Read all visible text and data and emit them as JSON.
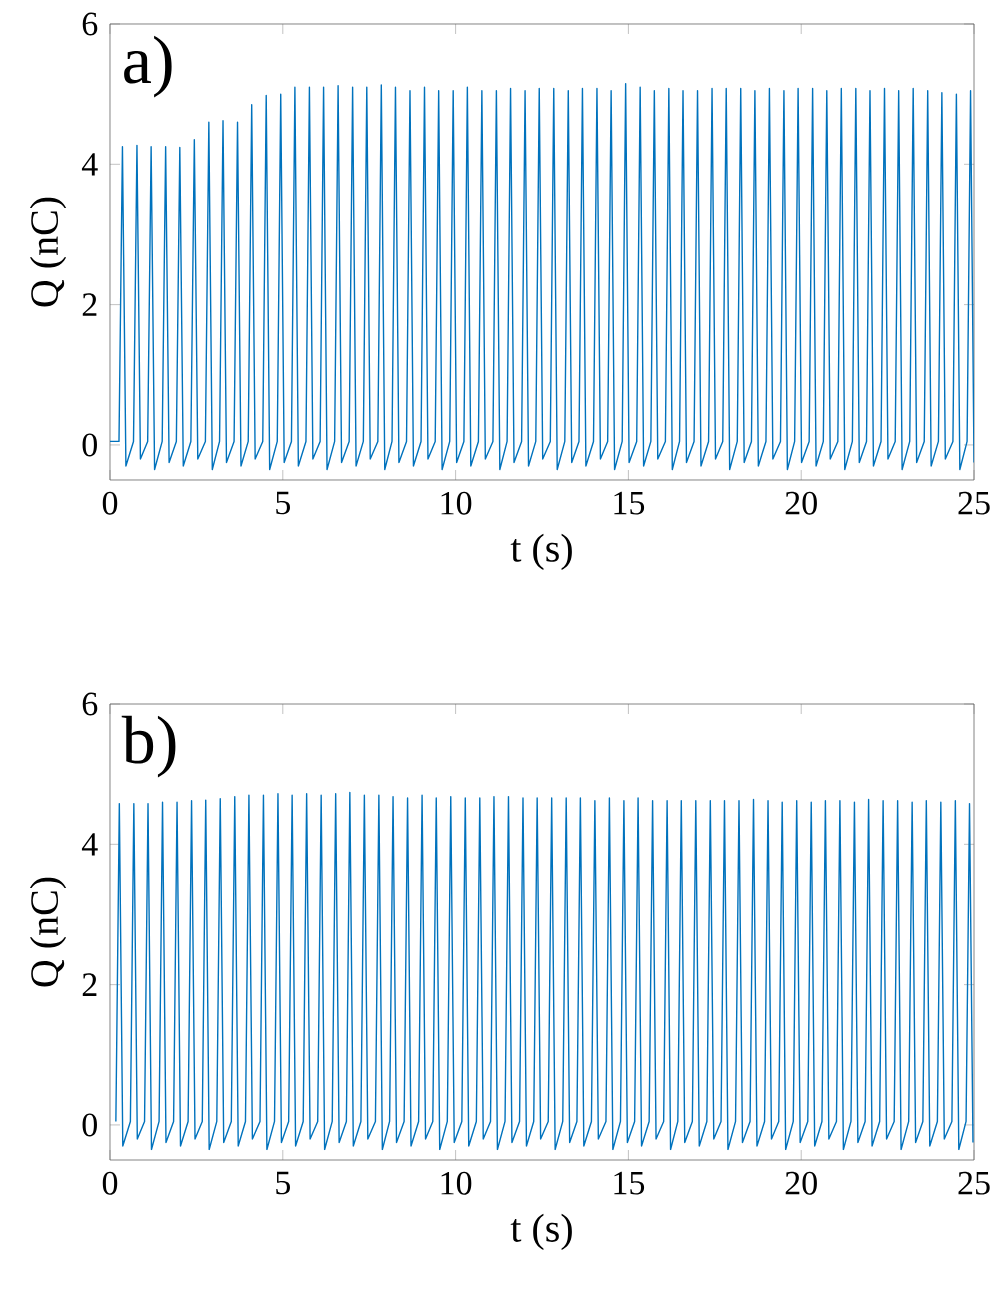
{
  "chart_data": [
    {
      "type": "line",
      "annotations": [
        "a)"
      ],
      "xlabel": "t (s)",
      "ylabel": "Q (nC)",
      "xlim": [
        0,
        25
      ],
      "ylim": [
        -0.5,
        6
      ],
      "xticks": [
        0,
        5,
        10,
        15,
        20,
        25
      ],
      "yticks": [
        0,
        2,
        4,
        6
      ],
      "series": [
        {
          "color": "#0072bd",
          "x": [
            0,
            0.26,
            0.36,
            0.46,
            0.68,
            0.78,
            0.88,
            1.09,
            1.19,
            1.29,
            1.51,
            1.61,
            1.71,
            1.92,
            2.02,
            2.12,
            2.34,
            2.44,
            2.54,
            2.76,
            2.86,
            2.96,
            3.17,
            3.27,
            3.37,
            3.59,
            3.69,
            3.79,
            4.0,
            4.1,
            4.2,
            4.42,
            4.52,
            4.62,
            4.84,
            4.94,
            5.04,
            5.25,
            5.35,
            5.45,
            5.67,
            5.77,
            5.87,
            6.08,
            6.18,
            6.28,
            6.5,
            6.6,
            6.7,
            6.92,
            7.02,
            7.12,
            7.33,
            7.43,
            7.53,
            7.75,
            7.85,
            7.95,
            8.16,
            8.26,
            8.36,
            8.58,
            8.68,
            8.78,
            9.0,
            9.1,
            9.2,
            9.41,
            9.51,
            9.61,
            9.83,
            9.93,
            10.03,
            10.24,
            10.34,
            10.44,
            10.66,
            10.76,
            10.86,
            11.08,
            11.18,
            11.28,
            11.49,
            11.59,
            11.69,
            11.91,
            12.01,
            12.11,
            12.32,
            12.42,
            12.52,
            12.74,
            12.84,
            12.94,
            13.16,
            13.26,
            13.36,
            13.57,
            13.67,
            13.77,
            13.99,
            14.09,
            14.19,
            14.4,
            14.5,
            14.6,
            14.82,
            14.92,
            15.02,
            15.24,
            15.34,
            15.44,
            15.65,
            15.75,
            15.85,
            16.07,
            16.17,
            16.27,
            16.48,
            16.58,
            16.68,
            16.9,
            17.0,
            17.1,
            17.32,
            17.42,
            17.52,
            17.73,
            17.83,
            17.93,
            18.15,
            18.25,
            18.35,
            18.56,
            18.66,
            18.76,
            18.98,
            19.08,
            19.18,
            19.4,
            19.5,
            19.6,
            19.81,
            19.91,
            20.01,
            20.23,
            20.33,
            20.43,
            20.64,
            20.74,
            20.84,
            21.06,
            21.16,
            21.26,
            21.48,
            21.58,
            21.68,
            21.89,
            21.99,
            22.09,
            22.31,
            22.41,
            22.51,
            22.72,
            22.82,
            22.92,
            23.14,
            23.24,
            23.34,
            23.56,
            23.66,
            23.76,
            23.97,
            24.07,
            24.17,
            24.39,
            24.49,
            24.59,
            24.8,
            24.9,
            25.0
          ],
          "values": [
            0.05,
            0.05,
            4.25,
            -0.3,
            0.05,
            4.27,
            -0.2,
            0.05,
            4.25,
            -0.35,
            0.05,
            4.25,
            -0.25,
            0.05,
            4.24,
            -0.3,
            0.05,
            4.35,
            -0.2,
            0.05,
            4.6,
            -0.35,
            0.05,
            4.62,
            -0.25,
            0.05,
            4.6,
            -0.3,
            0.05,
            4.85,
            -0.2,
            0.05,
            4.98,
            -0.35,
            0.05,
            5.0,
            -0.25,
            0.05,
            5.1,
            -0.3,
            0.05,
            5.1,
            -0.2,
            0.05,
            5.1,
            -0.35,
            0.05,
            5.12,
            -0.25,
            0.05,
            5.1,
            -0.3,
            0.05,
            5.1,
            -0.2,
            0.05,
            5.13,
            -0.35,
            0.05,
            5.1,
            -0.25,
            0.05,
            5.05,
            -0.3,
            0.05,
            5.1,
            -0.2,
            0.05,
            5.05,
            -0.35,
            0.05,
            5.05,
            -0.25,
            0.05,
            5.1,
            -0.3,
            0.05,
            5.05,
            -0.2,
            0.05,
            5.05,
            -0.35,
            0.05,
            5.08,
            -0.25,
            0.05,
            5.05,
            -0.3,
            0.05,
            5.08,
            -0.2,
            0.05,
            5.08,
            -0.35,
            0.05,
            5.05,
            -0.25,
            0.05,
            5.08,
            -0.3,
            0.05,
            5.08,
            -0.2,
            0.05,
            5.05,
            -0.35,
            0.05,
            5.15,
            -0.25,
            0.05,
            5.1,
            -0.3,
            0.05,
            5.05,
            -0.2,
            0.05,
            5.08,
            -0.35,
            0.05,
            5.05,
            -0.25,
            0.05,
            5.05,
            -0.3,
            0.05,
            5.08,
            -0.2,
            0.05,
            5.08,
            -0.35,
            0.05,
            5.08,
            -0.25,
            0.05,
            5.05,
            -0.3,
            0.05,
            5.08,
            -0.2,
            0.05,
            5.05,
            -0.35,
            0.05,
            5.08,
            -0.25,
            0.05,
            5.08,
            -0.3,
            0.05,
            5.05,
            -0.2,
            0.05,
            5.08,
            -0.35,
            0.05,
            5.08,
            -0.25,
            0.05,
            5.05,
            -0.3,
            0.05,
            5.08,
            -0.2,
            0.05,
            5.05,
            -0.35,
            0.05,
            5.08,
            -0.25,
            0.05,
            5.05,
            -0.3,
            0.05,
            5.02,
            -0.2,
            0.05,
            5.0,
            -0.35,
            0.05,
            5.05,
            -0.25
          ]
        }
      ]
    },
    {
      "type": "line",
      "annotations": [
        "b)"
      ],
      "xlabel": "t (s)",
      "ylabel": "Q (nC)",
      "xlim": [
        0,
        25
      ],
      "ylim": [
        -0.5,
        6
      ],
      "xticks": [
        0,
        5,
        10,
        15,
        20,
        25
      ],
      "yticks": [
        0,
        2,
        4,
        6
      ],
      "series": [
        {
          "color": "#0072bd",
          "x": [
            0.17,
            0.27,
            0.37,
            0.59,
            0.69,
            0.79,
            1.0,
            1.1,
            1.2,
            1.42,
            1.52,
            1.62,
            1.84,
            1.94,
            2.04,
            2.26,
            2.36,
            2.46,
            2.67,
            2.77,
            2.87,
            3.09,
            3.19,
            3.29,
            3.51,
            3.61,
            3.71,
            3.92,
            4.02,
            4.12,
            4.34,
            4.44,
            4.54,
            4.76,
            4.86,
            4.96,
            5.17,
            5.27,
            5.37,
            5.59,
            5.69,
            5.79,
            6.01,
            6.11,
            6.21,
            6.43,
            6.53,
            6.63,
            6.84,
            6.94,
            7.04,
            7.26,
            7.36,
            7.46,
            7.68,
            7.78,
            7.88,
            8.09,
            8.19,
            8.29,
            8.51,
            8.61,
            8.71,
            8.93,
            9.03,
            9.13,
            9.34,
            9.44,
            9.54,
            9.76,
            9.86,
            9.96,
            10.18,
            10.28,
            10.38,
            10.6,
            10.7,
            10.8,
            11.01,
            11.11,
            11.21,
            11.43,
            11.53,
            11.63,
            11.85,
            11.95,
            12.05,
            12.26,
            12.36,
            12.46,
            12.68,
            12.78,
            12.88,
            13.1,
            13.2,
            13.3,
            13.51,
            13.61,
            13.71,
            13.93,
            14.03,
            14.13,
            14.35,
            14.45,
            14.55,
            14.77,
            14.87,
            14.97,
            15.18,
            15.28,
            15.38,
            15.6,
            15.7,
            15.8,
            16.02,
            16.12,
            16.22,
            16.43,
            16.53,
            16.63,
            16.85,
            16.95,
            17.05,
            17.27,
            17.37,
            17.47,
            17.68,
            17.78,
            17.88,
            18.1,
            18.2,
            18.3,
            18.52,
            18.62,
            18.72,
            18.94,
            19.04,
            19.14,
            19.35,
            19.45,
            19.55,
            19.77,
            19.87,
            19.97,
            20.19,
            20.29,
            20.39,
            20.6,
            20.7,
            20.8,
            21.02,
            21.12,
            21.22,
            21.44,
            21.54,
            21.64,
            21.85,
            21.95,
            22.05,
            22.27,
            22.37,
            22.47,
            22.69,
            22.79,
            22.89,
            23.11,
            23.21,
            23.31,
            23.52,
            23.62,
            23.72,
            23.94,
            24.04,
            24.14,
            24.36,
            24.46,
            24.56,
            24.77,
            24.87,
            24.97
          ],
          "values": [
            0.05,
            4.58,
            -0.3,
            0.05,
            4.58,
            -0.2,
            0.05,
            4.58,
            -0.35,
            0.05,
            4.6,
            -0.25,
            0.05,
            4.6,
            -0.3,
            0.05,
            4.62,
            -0.2,
            0.05,
            4.63,
            -0.35,
            0.05,
            4.65,
            -0.25,
            0.05,
            4.68,
            -0.3,
            0.05,
            4.7,
            -0.2,
            0.05,
            4.7,
            -0.35,
            0.05,
            4.72,
            -0.25,
            0.05,
            4.7,
            -0.3,
            0.05,
            4.72,
            -0.2,
            0.05,
            4.7,
            -0.35,
            0.05,
            4.72,
            -0.25,
            0.05,
            4.74,
            -0.3,
            0.05,
            4.7,
            -0.2,
            0.05,
            4.7,
            -0.35,
            0.05,
            4.68,
            -0.25,
            0.05,
            4.66,
            -0.3,
            0.05,
            4.7,
            -0.2,
            0.05,
            4.66,
            -0.35,
            0.05,
            4.68,
            -0.25,
            0.05,
            4.66,
            -0.3,
            0.05,
            4.66,
            -0.2,
            0.05,
            4.68,
            -0.35,
            0.05,
            4.68,
            -0.25,
            0.05,
            4.66,
            -0.3,
            0.05,
            4.66,
            -0.2,
            0.05,
            4.66,
            -0.35,
            0.05,
            4.66,
            -0.25,
            0.05,
            4.66,
            -0.3,
            0.05,
            4.62,
            -0.2,
            0.05,
            4.66,
            -0.35,
            0.05,
            4.62,
            -0.25,
            0.05,
            4.66,
            -0.3,
            0.05,
            4.62,
            -0.2,
            0.05,
            4.62,
            -0.35,
            0.05,
            4.62,
            -0.25,
            0.05,
            4.62,
            -0.3,
            0.05,
            4.62,
            -0.2,
            0.05,
            4.62,
            -0.35,
            0.05,
            4.62,
            -0.25,
            0.05,
            4.64,
            -0.3,
            0.05,
            4.62,
            -0.2,
            0.05,
            4.6,
            -0.35,
            0.05,
            4.62,
            -0.25,
            0.05,
            4.6,
            -0.3,
            0.05,
            4.62,
            -0.2,
            0.05,
            4.62,
            -0.35,
            0.05,
            4.6,
            -0.25,
            0.05,
            4.64,
            -0.3,
            0.05,
            4.62,
            -0.2,
            0.05,
            4.62,
            -0.35,
            0.05,
            4.6,
            -0.25,
            0.05,
            4.62,
            -0.3,
            0.05,
            4.6,
            -0.2,
            0.05,
            4.62,
            -0.35,
            0.05,
            4.58,
            -0.25
          ]
        }
      ]
    }
  ]
}
